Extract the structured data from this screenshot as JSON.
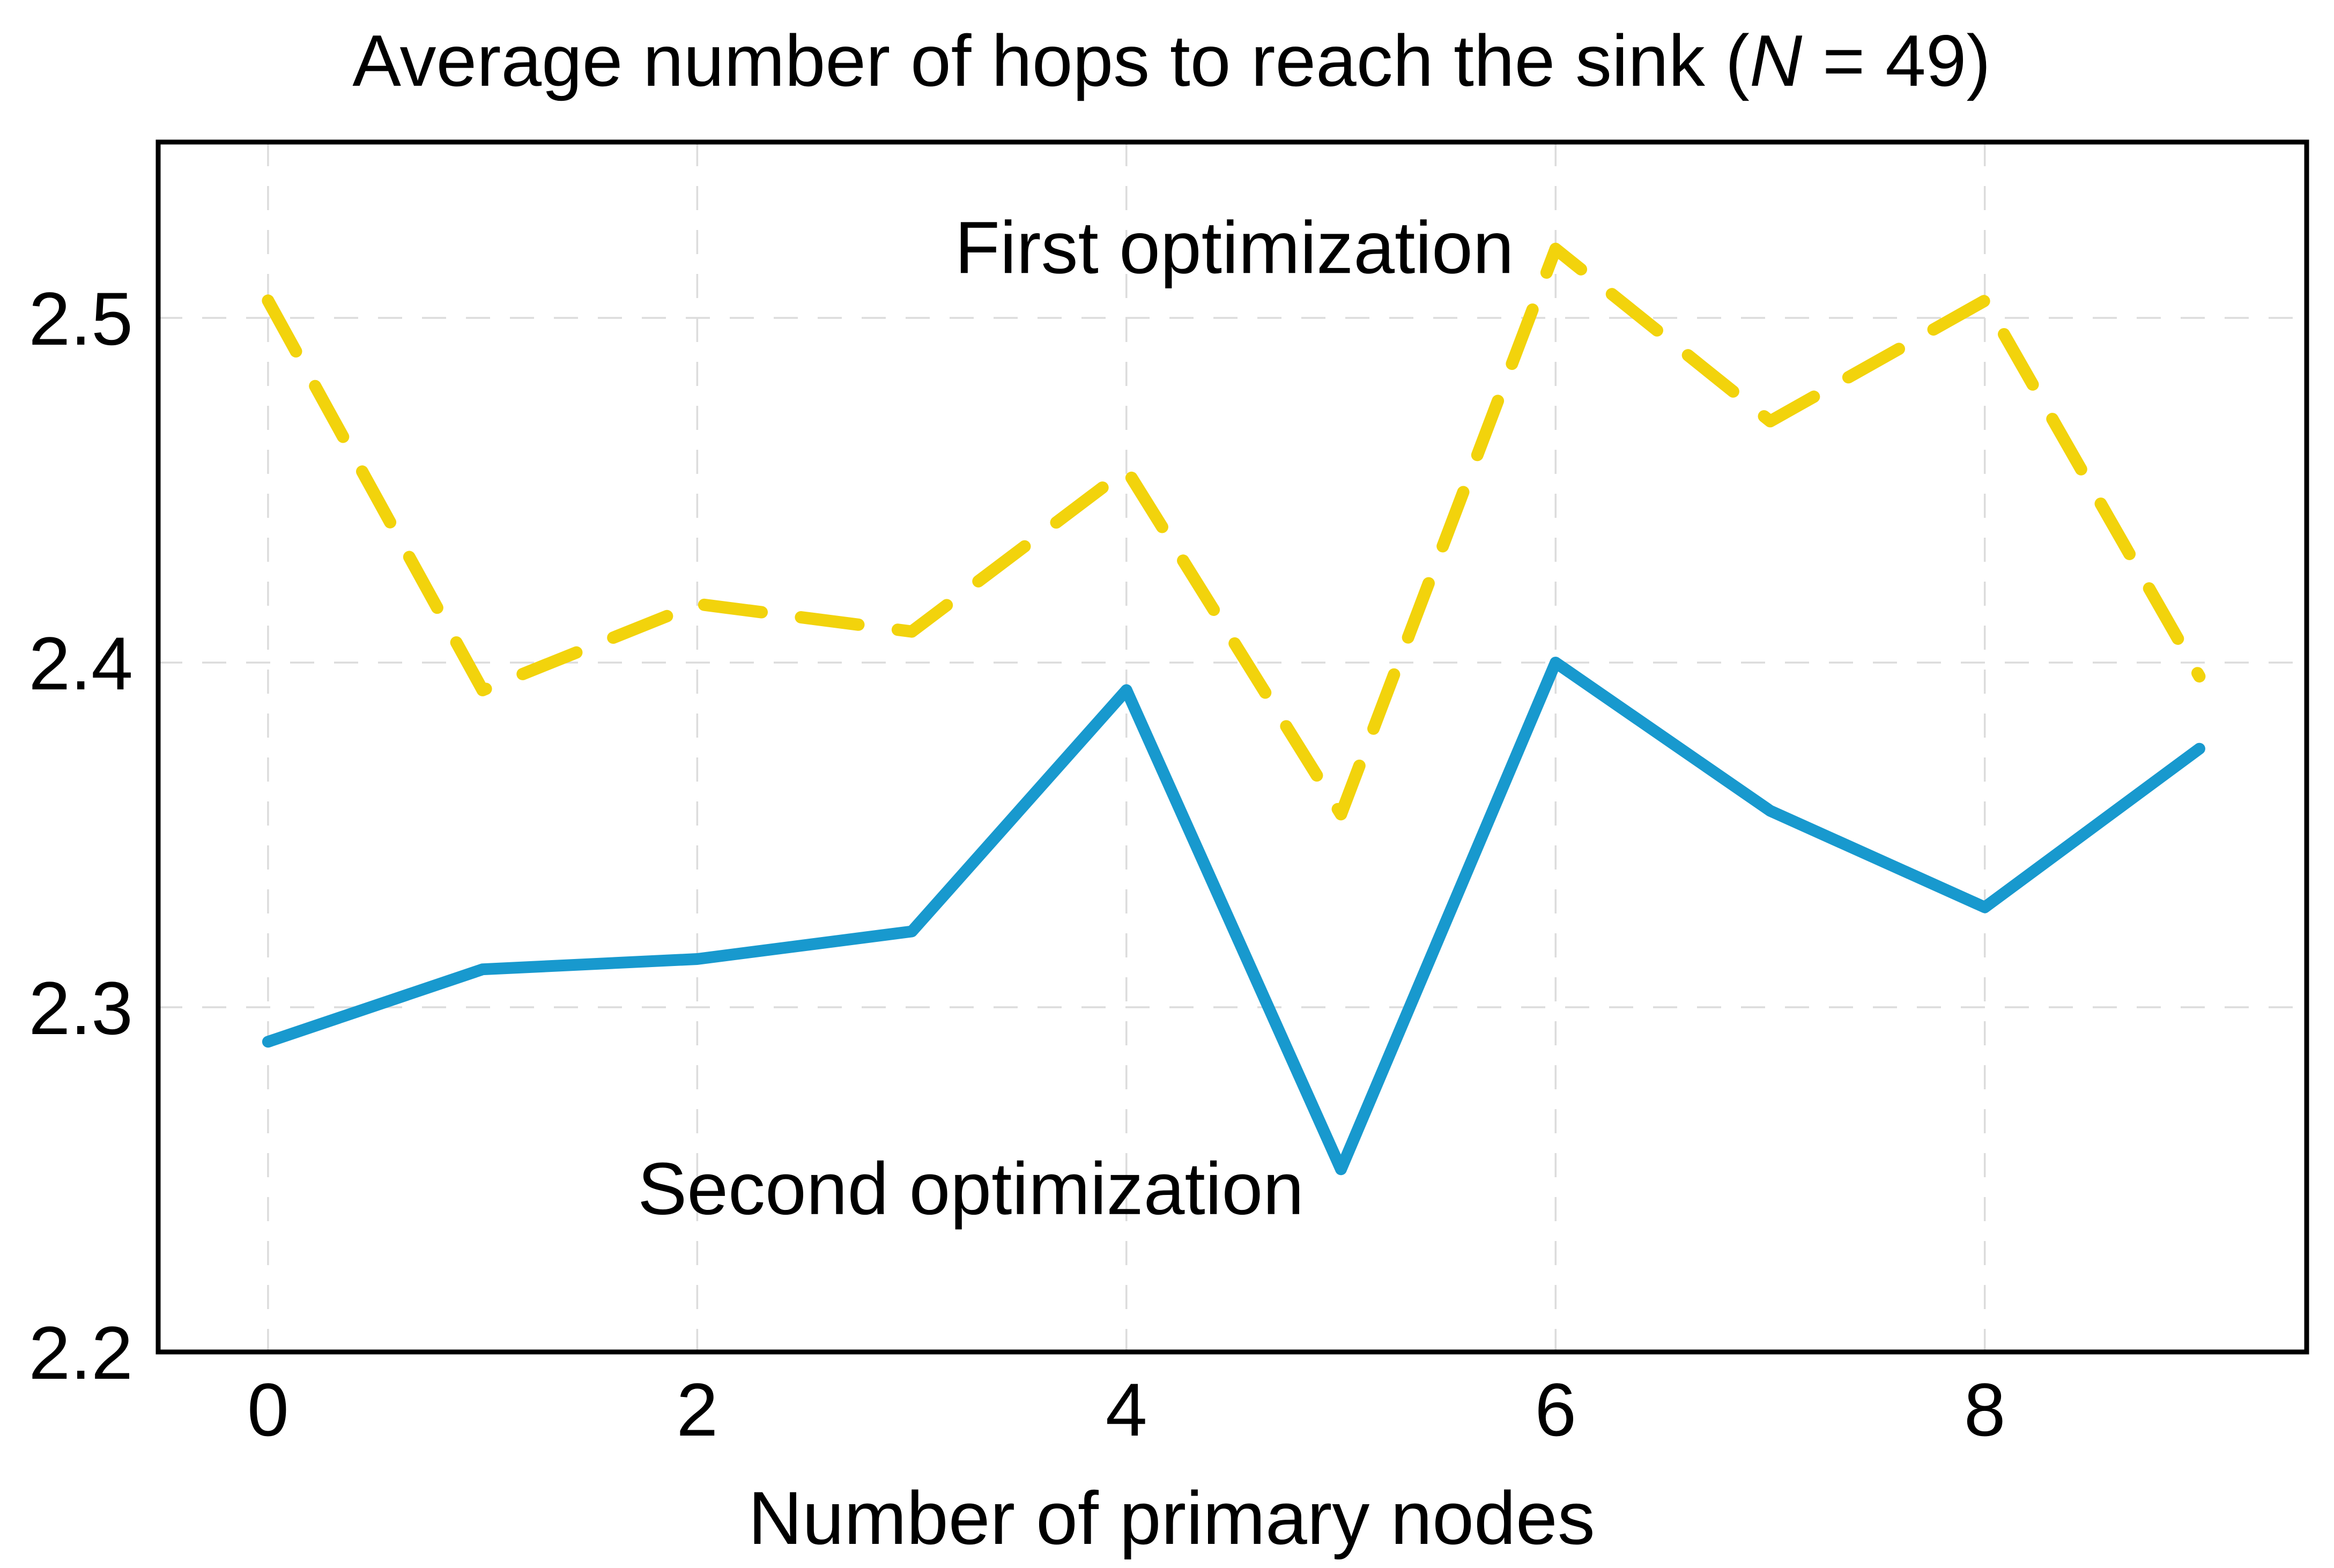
{
  "page": {
    "background": "#FFFFFF",
    "text_color": "#000000"
  },
  "chart_data": {
    "type": "line",
    "title_plain": "Average number of hops to reach the sink (N = 49)",
    "title_parts": {
      "prefix": "Average number of hops to reach the sink (",
      "math_var": "N",
      "suffix": " = 49)"
    },
    "xlabel": "Number of primary nodes",
    "ylabel": "",
    "x": [
      0,
      1,
      2,
      3,
      4,
      5,
      6,
      7,
      8,
      9
    ],
    "series": [
      {
        "name": "First optimization",
        "color": "#F2D30C",
        "style": "dashed",
        "line_width": 23,
        "values": [
          2.505,
          2.392,
          2.417,
          2.409,
          2.456,
          2.356,
          2.52,
          2.47,
          2.505,
          2.396
        ]
      },
      {
        "name": "Second optimization",
        "color": "#1899CE",
        "style": "solid",
        "line_width": 22,
        "values": [
          2.29,
          2.311,
          2.314,
          2.322,
          2.392,
          2.253,
          2.4,
          2.357,
          2.329,
          2.375
        ]
      }
    ],
    "annotations": [
      {
        "text": "First optimization",
        "x": 4.503,
        "y": 2.513,
        "series_index": 0
      },
      {
        "text": "Second optimization",
        "x": 3.275,
        "y": 2.24,
        "series_index": 1
      }
    ],
    "xlim": [
      -0.512,
      9.5
    ],
    "ylim": [
      2.2,
      2.551
    ],
    "xticks": [
      0,
      2,
      4,
      6,
      8
    ],
    "xtick_labels": [
      "0",
      "2",
      "4",
      "6",
      "8"
    ],
    "yticks": [
      2.2,
      2.3,
      2.4,
      2.5
    ],
    "ytick_labels": [
      "2.2",
      "2.3",
      "2.4",
      "2.5"
    ],
    "grid": true,
    "grid_color": "#DCDCDC",
    "frame_color": "#000000",
    "background_color": "#FFFFFF",
    "legend_position": "inline-annotations"
  }
}
